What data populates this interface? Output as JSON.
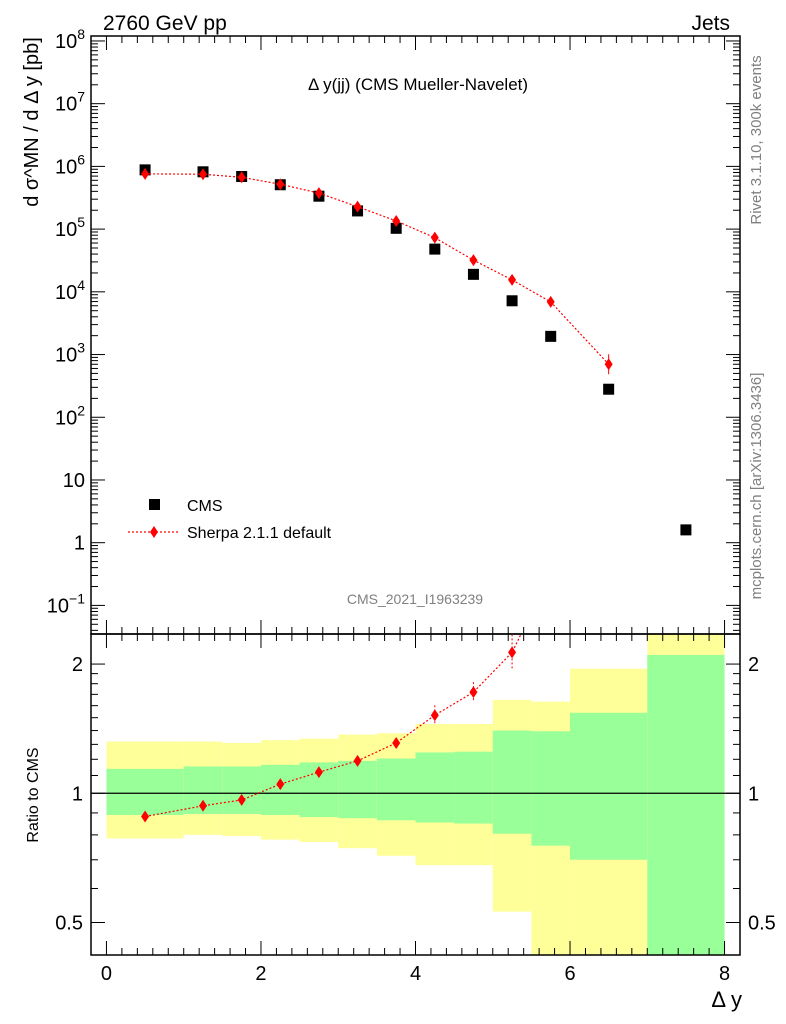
{
  "header": {
    "left": "2760 GeV pp",
    "right": "Jets"
  },
  "side_labels": {
    "rivet": "Rivet 3.1.10,  300k events",
    "mcplots": "mcplots.cern.ch [arXiv:1306.3436]"
  },
  "chart_data": [
    {
      "type": "scatter",
      "title": "Δ y(jj) (CMS Mueller-Navelet)",
      "ylabel": "d σ^MN / d Δ y [pb]",
      "yscale": "log",
      "ylim": [
        0.035,
        120000000
      ],
      "xlim": [
        -0.2,
        8.2
      ],
      "watermark": "CMS_2021_I1963239",
      "yticks": [
        "10^-1",
        "1",
        "10",
        "10^2",
        "10^3",
        "10^4",
        "10^5",
        "10^6",
        "10^7",
        "10^8"
      ],
      "legend": {
        "position": "bottom-left",
        "entries": [
          "CMS",
          "Sherpa 2.1.1 default"
        ]
      },
      "series": [
        {
          "name": "CMS",
          "marker": "square",
          "color": "#000000",
          "x": [
            0.5,
            1.25,
            1.75,
            2.25,
            2.75,
            3.25,
            3.75,
            4.25,
            4.75,
            5.25,
            5.75,
            6.5,
            7.5
          ],
          "y": [
            880000,
            820000,
            690000,
            510000,
            335000,
            195000,
            103000,
            48000,
            19000,
            7200,
            1950,
            280,
            1.6
          ]
        },
        {
          "name": "Sherpa 2.1.1 default",
          "marker": "diamond",
          "line": "dotted",
          "color": "#ff0000",
          "x": [
            0.5,
            1.25,
            1.75,
            2.25,
            2.75,
            3.25,
            3.75,
            4.25,
            4.75,
            5.25,
            5.75,
            6.5
          ],
          "y": [
            760000,
            750000,
            670000,
            520000,
            375000,
            228000,
            135000,
            73000,
            32000,
            15500,
            6900,
            700
          ]
        }
      ]
    },
    {
      "type": "scatter",
      "ylabel": "Ratio to CMS",
      "xlabel": "Δ y",
      "yscale": "log",
      "ylim": [
        0.42,
        2.35
      ],
      "xlim": [
        -0.2,
        8.2
      ],
      "xticks": [
        0,
        2,
        4,
        6,
        8
      ],
      "yticks": [
        0.5,
        1,
        2
      ],
      "bands": {
        "edges": [
          0,
          1,
          1.5,
          2,
          2.5,
          3,
          3.5,
          4,
          4.5,
          5,
          5.5,
          6,
          7,
          8
        ],
        "inner_lo": [
          0.89,
          0.895,
          0.895,
          0.89,
          0.88,
          0.875,
          0.865,
          0.855,
          0.85,
          0.805,
          0.755,
          0.7,
          0.395
        ],
        "inner_hi": [
          1.14,
          1.155,
          1.155,
          1.165,
          1.18,
          1.19,
          1.205,
          1.245,
          1.25,
          1.4,
          1.395,
          1.54,
          2.1
        ],
        "outer_lo": [
          0.785,
          0.8,
          0.795,
          0.78,
          0.77,
          0.745,
          0.715,
          0.68,
          0.68,
          0.53,
          0.385,
          0.37,
          0.36
        ],
        "outer_hi": [
          1.32,
          1.32,
          1.31,
          1.33,
          1.34,
          1.37,
          1.38,
          1.45,
          1.45,
          1.65,
          1.635,
          1.95,
          2.5
        ],
        "inner_color": "#99ff99",
        "outer_color": "#ffff99"
      },
      "series": [
        {
          "name": "Sherpa 2.1.1 default",
          "marker": "diamond",
          "line": "dotted",
          "color": "#ff0000",
          "x": [
            0.5,
            1.25,
            1.75,
            2.25,
            2.75,
            3.25,
            3.75,
            4.25,
            4.75,
            5.25
          ],
          "y": [
            0.883,
            0.935,
            0.965,
            1.05,
            1.12,
            1.19,
            1.31,
            1.52,
            1.72,
            2.13
          ]
        }
      ]
    }
  ]
}
